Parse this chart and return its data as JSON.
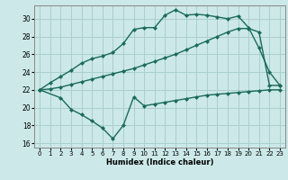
{
  "xlabel": "Humidex (Indice chaleur)",
  "bg_color": "#cce8e8",
  "grid_color": "#aacece",
  "line_color": "#1a6b5a",
  "xlim": [
    -0.5,
    23.5
  ],
  "ylim": [
    15.5,
    31.5
  ],
  "xticks": [
    0,
    1,
    2,
    3,
    4,
    5,
    6,
    7,
    8,
    9,
    10,
    11,
    12,
    13,
    14,
    15,
    16,
    17,
    18,
    19,
    20,
    21,
    22,
    23
  ],
  "yticks": [
    16,
    18,
    20,
    22,
    24,
    26,
    28,
    30
  ],
  "line1_x": [
    0,
    1,
    2,
    3,
    4,
    5,
    6,
    7,
    8,
    9,
    10,
    11,
    12,
    13,
    14,
    15,
    16,
    17,
    18,
    19,
    20,
    21,
    22,
    23
  ],
  "line1_y": [
    22.0,
    22.8,
    23.5,
    24.2,
    25.0,
    25.5,
    25.8,
    26.2,
    27.2,
    28.8,
    29.0,
    29.0,
    30.4,
    31.0,
    30.4,
    30.5,
    30.4,
    30.2,
    30.0,
    30.3,
    29.0,
    26.7,
    24.0,
    22.5
  ],
  "line2_x": [
    0,
    1,
    2,
    3,
    4,
    5,
    6,
    7,
    8,
    9,
    10,
    11,
    12,
    13,
    14,
    15,
    16,
    17,
    18,
    19,
    20,
    21,
    22,
    23
  ],
  "line2_y": [
    22.0,
    22.1,
    22.3,
    22.6,
    22.9,
    23.2,
    23.5,
    23.8,
    24.1,
    24.4,
    24.8,
    25.2,
    25.6,
    26.0,
    26.5,
    27.0,
    27.5,
    28.0,
    28.5,
    28.9,
    28.9,
    28.5,
    22.5,
    22.5
  ],
  "line3_x": [
    0,
    2,
    3,
    4,
    5,
    6,
    7,
    8,
    9,
    10,
    11,
    12,
    13,
    14,
    15,
    16,
    17,
    18,
    19,
    20,
    21,
    22,
    23
  ],
  "line3_y": [
    22.0,
    21.1,
    19.8,
    19.2,
    18.5,
    17.7,
    16.5,
    18.0,
    21.2,
    20.2,
    20.4,
    20.6,
    20.8,
    21.0,
    21.2,
    21.4,
    21.5,
    21.6,
    21.7,
    21.8,
    21.9,
    22.0,
    22.0
  ]
}
